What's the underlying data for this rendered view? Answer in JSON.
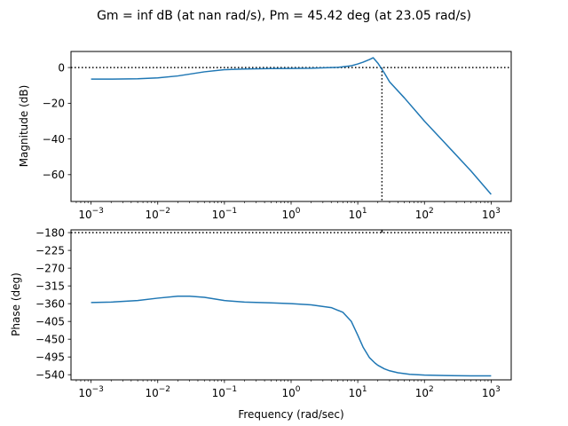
{
  "figure": {
    "title": "Gm = inf dB (at nan rad/s), Pm = 45.42 deg (at 23.05 rad/s)"
  },
  "colors": {
    "series": "#1f77b4",
    "reference_line": "#000000",
    "axes": "#000000"
  },
  "chart_data": [
    {
      "type": "line",
      "name": "magnitude",
      "xlabel": "",
      "ylabel": "Magnitude (dB)",
      "x_scale": "log",
      "xlim": [
        0.0005,
        2000
      ],
      "ylim": [
        -75,
        9
      ],
      "x_ticks": [
        0.001,
        0.01,
        0.1,
        1,
        10,
        100,
        1000
      ],
      "x_tick_labels": [
        "10^-3",
        "10^-2",
        "10^-1",
        "10^0",
        "10^1",
        "10^2",
        "10^3"
      ],
      "y_ticks": [
        -60,
        -40,
        -20,
        0
      ],
      "y_tick_labels": [
        "−60",
        "−40",
        "−20",
        "0"
      ],
      "grid": false,
      "reference_lines": [
        {
          "orientation": "horizontal",
          "y": 0,
          "style": "dotted"
        },
        {
          "orientation": "vertical",
          "x": 23.05,
          "from_y": 0,
          "to_y": -75,
          "style": "dotted"
        }
      ],
      "series": [
        {
          "x": [
            0.001,
            0.002,
            0.005,
            0.01,
            0.02,
            0.05,
            0.1,
            0.2,
            0.5,
            1,
            2,
            5,
            8,
            10,
            12,
            15,
            17,
            20,
            25,
            30,
            50,
            100,
            200,
            500,
            1000
          ],
          "y": [
            -6.5,
            -6.5,
            -6.3,
            -5.8,
            -4.7,
            -2.4,
            -1.2,
            -0.8,
            -0.6,
            -0.5,
            -0.4,
            0.1,
            1.0,
            2.0,
            3.0,
            4.5,
            5.5,
            2.5,
            -3.0,
            -8.0,
            -17.0,
            -30.0,
            -42.0,
            -58.0,
            -71.0
          ]
        }
      ]
    },
    {
      "type": "line",
      "name": "phase",
      "xlabel": "Frequency (rad/sec)",
      "ylabel": "Phase (deg)",
      "x_scale": "log",
      "xlim": [
        0.0005,
        2000
      ],
      "ylim": [
        -553,
        -173
      ],
      "x_ticks": [
        0.001,
        0.01,
        0.1,
        1,
        10,
        100,
        1000
      ],
      "x_tick_labels": [
        "10^-3",
        "10^-2",
        "10^-1",
        "10^0",
        "10^1",
        "10^2",
        "10^3"
      ],
      "y_ticks": [
        -180,
        -225,
        -270,
        -315,
        -360,
        -405,
        -450,
        -495,
        -540
      ],
      "y_tick_labels": [
        "−180",
        "−225",
        "−270",
        "−315",
        "−360",
        "−405",
        "−450",
        "−495",
        "−540"
      ],
      "grid": false,
      "reference_lines": [
        {
          "orientation": "horizontal",
          "y": -180,
          "style": "dotted"
        },
        {
          "orientation": "vertical",
          "x": 23.05,
          "from_y": -173,
          "to_y": -180,
          "style": "solid"
        }
      ],
      "series": [
        {
          "x": [
            0.001,
            0.002,
            0.005,
            0.01,
            0.02,
            0.03,
            0.05,
            0.1,
            0.2,
            0.5,
            1,
            2,
            4,
            6,
            8,
            10,
            12,
            15,
            18,
            20,
            25,
            30,
            40,
            60,
            100,
            200,
            500,
            1000
          ],
          "y": [
            -357,
            -356,
            -352,
            -346,
            -341,
            -341,
            -344,
            -352,
            -356,
            -358,
            -360,
            -363,
            -370,
            -382,
            -405,
            -440,
            -470,
            -497,
            -510,
            -516,
            -525,
            -530,
            -535,
            -539,
            -541,
            -542,
            -543,
            -543
          ]
        }
      ]
    }
  ]
}
